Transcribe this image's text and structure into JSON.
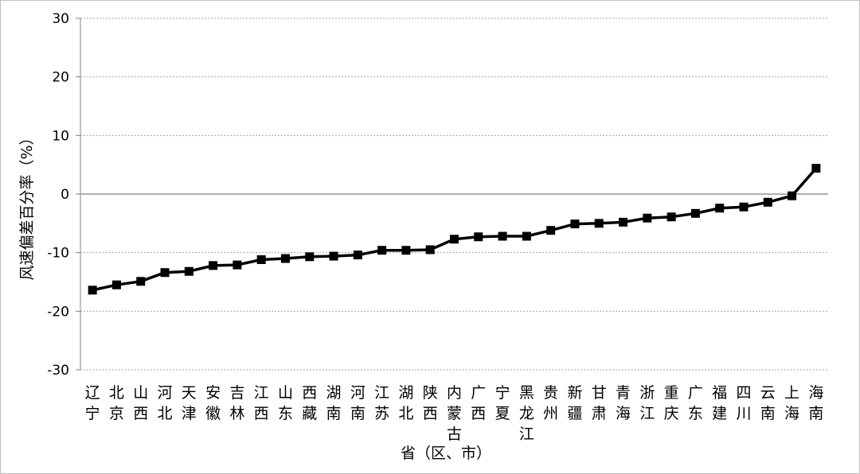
{
  "chart_data": {
    "type": "line",
    "title": "",
    "xlabel": "省（区、市）",
    "ylabel": "风速偏差百分率（%）",
    "ylim": [
      -30,
      30
    ],
    "yticks": [
      30,
      20,
      10,
      0,
      -10,
      -20,
      -30
    ],
    "grid": true,
    "legend": "none",
    "categories": [
      "辽宁",
      "北京",
      "山西",
      "河北",
      "天津",
      "安徽",
      "吉林",
      "江西",
      "山东",
      "西藏",
      "湖南",
      "河南",
      "江苏",
      "湖北",
      "陕西",
      "内蒙古",
      "广西",
      "宁夏",
      "黑龙江",
      "贵州",
      "新疆",
      "甘肃",
      "青海",
      "浙江",
      "重庆",
      "广东",
      "福建",
      "四川",
      "云南",
      "上海",
      "海南"
    ],
    "series": [
      {
        "values": [
          -16.4,
          -15.5,
          -14.9,
          -13.4,
          -13.2,
          -12.2,
          -12.1,
          -11.2,
          -11.0,
          -10.7,
          -10.6,
          -10.4,
          -9.6,
          -9.6,
          -9.5,
          -7.7,
          -7.3,
          -7.2,
          -7.2,
          -6.2,
          -5.1,
          -5.0,
          -4.8,
          -4.1,
          -3.9,
          -3.3,
          -2.4,
          -2.2,
          -1.4,
          -0.3,
          4.4
        ],
        "color": "#000000"
      }
    ]
  }
}
